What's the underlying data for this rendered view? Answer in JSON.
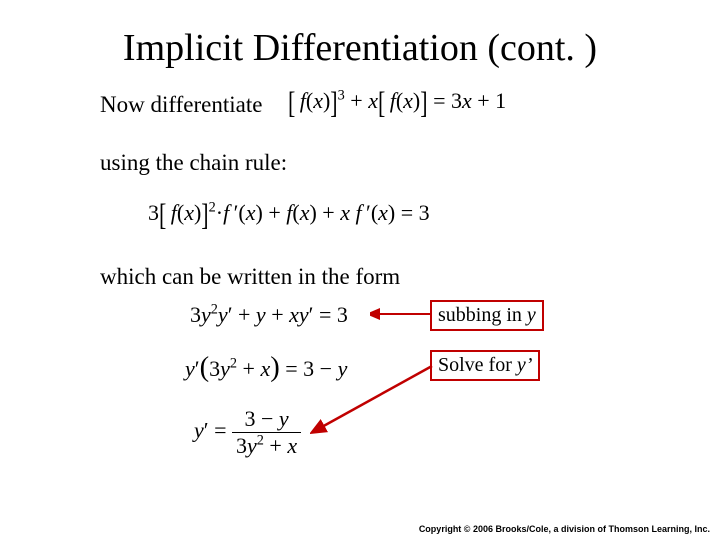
{
  "title": "Implicit Differentiation (cont. )",
  "line1": "Now differentiate",
  "eq1_html": "<span class='big-bracket-l'>[</span>&thinsp;<i>f</i>(<i>x</i>)<span class='big-bracket-r'>]</span><sup>3</sup> + <i>x</i><span class='big-bracket-l'>[</span>&thinsp;<i>f</i>(<i>x</i>)<span class='big-bracket-r'>]</span> = 3<i>x</i> + 1",
  "line2": "using the chain rule:",
  "eq2_html": "3<span class='big-bracket-l'>[</span>&thinsp;<i>f</i>(<i>x</i>)<span class='big-bracket-r'>]</span><sup>2</sup>&middot;<i>f</i>&thinsp;&prime;(<i>x</i>) + <i>f</i>(<i>x</i>) + <i>x f</i>&thinsp;&prime;(<i>x</i>) = 3",
  "line3": "which can be written in the form",
  "eq3_html": "3<i>y</i><sup>2</sup><i>y</i>&prime; + <i>y</i> + <i>xy</i>&prime; = 3",
  "eq4_html": "<i>y</i>&prime;<span style='font-size:1.3em'>(</span>3<i>y</i><sup>2</sup> + <i>x</i><span style='font-size:1.3em'>)</span> = 3 &minus; <i>y</i>",
  "eq5_html": "<i>y</i>&prime; = <span class='frac'><span class='num'>3 &minus; <i>y</i></span><span class='den'>3<i>y</i><sup>2</sup> + <i>x</i></span></span>",
  "box1_label": "subbing in <i>y</i>",
  "box2_label": "Solve for <i>y&rsquo;</i>",
  "box1_color": "#c00000",
  "box2_color": "#c00000",
  "arrow1_color": "#c00000",
  "arrow2_color": "#c00000",
  "copyright": "Copyright © 2006 Brooks/Cole, a division of Thomson Learning, Inc."
}
